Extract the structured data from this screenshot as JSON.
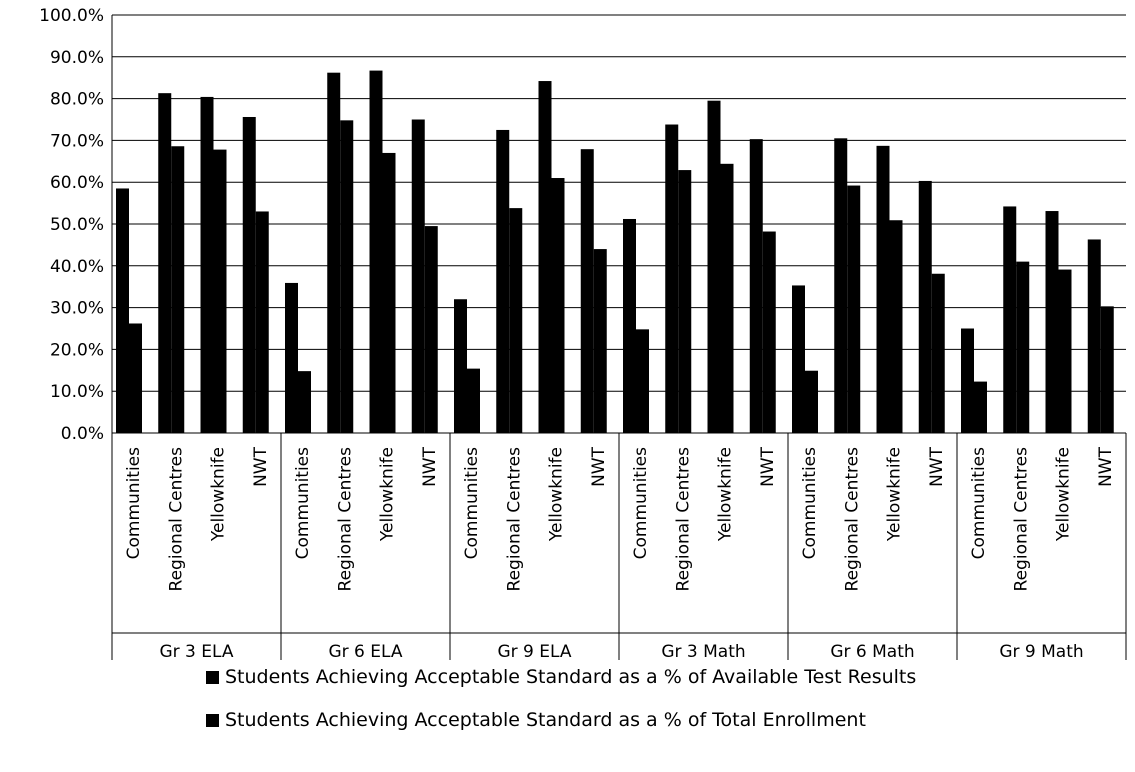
{
  "chart_data": {
    "type": "bar",
    "y_ticks": [
      "0.0%",
      "10.0%",
      "20.0%",
      "30.0%",
      "40.0%",
      "50.0%",
      "60.0%",
      "70.0%",
      "80.0%",
      "90.0%",
      "100.0%"
    ],
    "ylim": [
      0,
      100
    ],
    "grid": true,
    "legend_position": "bottom",
    "groups": [
      {
        "label": "Gr 3 ELA",
        "categories": [
          "Communities",
          "Regional Centres",
          "Yellowknife",
          "NWT"
        ],
        "series_a": [
          58.5,
          81.3,
          80.4,
          75.6
        ],
        "series_b": [
          26.2,
          68.6,
          67.8,
          53.0
        ]
      },
      {
        "label": "Gr 6 ELA",
        "categories": [
          "Communities",
          "Regional Centres",
          "Yellowknife",
          "NWT"
        ],
        "series_a": [
          35.9,
          86.2,
          86.7,
          75.0
        ],
        "series_b": [
          14.8,
          74.8,
          67.0,
          49.5
        ]
      },
      {
        "label": "Gr 9 ELA",
        "categories": [
          "Communities",
          "Regional Centres",
          "Yellowknife",
          "NWT"
        ],
        "series_a": [
          32.0,
          72.5,
          84.2,
          67.9
        ],
        "series_b": [
          15.4,
          53.8,
          61.0,
          44.0
        ]
      },
      {
        "label": "Gr 3 Math",
        "categories": [
          "Communities",
          "Regional Centres",
          "Yellowknife",
          "NWT"
        ],
        "series_a": [
          51.2,
          73.8,
          79.5,
          70.3
        ],
        "series_b": [
          24.8,
          62.9,
          64.4,
          48.2
        ]
      },
      {
        "label": "Gr 6 Math",
        "categories": [
          "Communities",
          "Regional Centres",
          "Yellowknife",
          "NWT"
        ],
        "series_a": [
          35.3,
          70.5,
          68.7,
          60.3
        ],
        "series_b": [
          14.9,
          59.2,
          50.9,
          38.1
        ]
      },
      {
        "label": "Gr 9 Math",
        "categories": [
          "Communities",
          "Regional Centres",
          "Yellowknife",
          "NWT"
        ],
        "series_a": [
          25.0,
          54.2,
          53.1,
          46.3
        ],
        "series_b": [
          12.3,
          41.0,
          39.1,
          30.3
        ]
      }
    ],
    "series": [
      {
        "name": "Students Achieving Acceptable Standard as a % of Available Test Results",
        "color": "#000000"
      },
      {
        "name": "Students Achieving Acceptable Standard as a % of Total Enrollment",
        "color": "#000000"
      }
    ]
  }
}
